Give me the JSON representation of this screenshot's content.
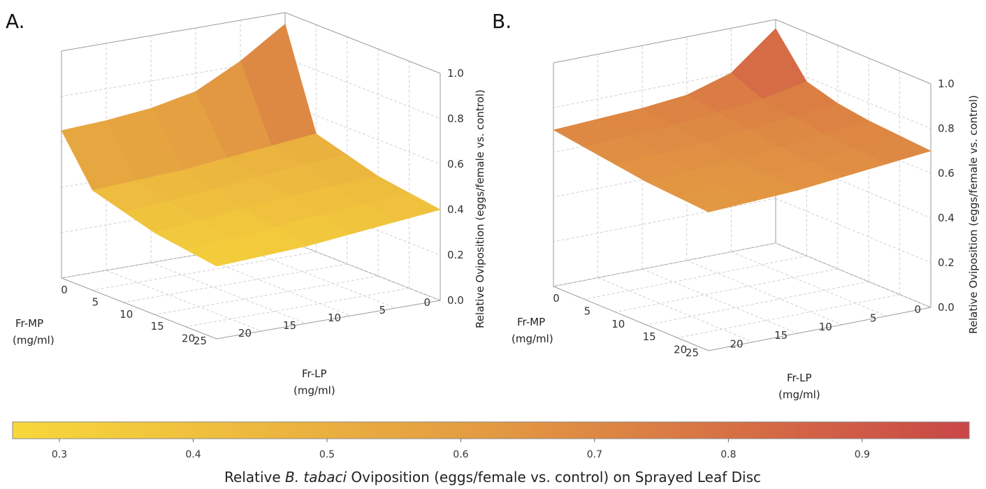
{
  "chart_data": [
    {
      "panel": "A.",
      "type": "surface3d",
      "zlabel": "Relative Oviposition (eggs/female vs. control)",
      "zlim": [
        0,
        1
      ],
      "zticks": [
        "0.0",
        "0.2",
        "0.4",
        "0.6",
        "0.8",
        "1.0"
      ],
      "axis_mp": {
        "label_line1": "Fr-MP",
        "label_line2": "(mg/ml)",
        "range": [
          0,
          25
        ],
        "ticks": [
          "0",
          "5",
          "10",
          "15",
          "20",
          "25"
        ]
      },
      "axis_lp": {
        "label_line1": "Fr-LP",
        "label_line2": "(mg/ml)",
        "range": [
          0,
          25
        ],
        "ticks": [
          "0",
          "5",
          "10",
          "15",
          "20"
        ]
      },
      "surface": {
        "mp": [
          0,
          5,
          10,
          15,
          20,
          25
        ],
        "lp": [
          0,
          5,
          10,
          15,
          20,
          25
        ],
        "z": [
          [
            0.95,
            0.52,
            0.48,
            0.44,
            0.42,
            0.4
          ],
          [
            0.82,
            0.5,
            0.47,
            0.43,
            0.4,
            0.38
          ],
          [
            0.72,
            0.48,
            0.45,
            0.42,
            0.39,
            0.36
          ],
          [
            0.68,
            0.46,
            0.43,
            0.4,
            0.37,
            0.34
          ],
          [
            0.66,
            0.45,
            0.41,
            0.38,
            0.35,
            0.33
          ],
          [
            0.65,
            0.44,
            0.4,
            0.36,
            0.34,
            0.32
          ]
        ]
      }
    },
    {
      "panel": "B.",
      "type": "surface3d",
      "zlabel": "Relative Oviposition (eggs/female vs. control)",
      "zlim": [
        0,
        1
      ],
      "zticks": [
        "0.0",
        "0.2",
        "0.4",
        "0.6",
        "0.8",
        "1.0"
      ],
      "axis_mp": {
        "label_line1": "Fr-MP",
        "label_line2": "(mg/ml)",
        "range": [
          0,
          25
        ],
        "ticks": [
          "0",
          "5",
          "10",
          "15",
          "20",
          "25"
        ]
      },
      "axis_lp": {
        "label_line1": "Fr-LP",
        "label_line2": "(mg/ml)",
        "range": [
          0,
          25
        ],
        "ticks": [
          "0",
          "5",
          "10",
          "15",
          "20"
        ]
      },
      "surface": {
        "mp": [
          0,
          5,
          10,
          15,
          20,
          25
        ],
        "lp": [
          0,
          5,
          10,
          15,
          20,
          25
        ],
        "z": [
          [
            0.96,
            0.78,
            0.74,
            0.72,
            0.71,
            0.7
          ],
          [
            0.8,
            0.74,
            0.72,
            0.7,
            0.69,
            0.68
          ],
          [
            0.74,
            0.72,
            0.7,
            0.68,
            0.67,
            0.66
          ],
          [
            0.72,
            0.7,
            0.68,
            0.66,
            0.65,
            0.64
          ],
          [
            0.71,
            0.69,
            0.67,
            0.65,
            0.64,
            0.63
          ],
          [
            0.7,
            0.68,
            0.66,
            0.64,
            0.63,
            0.62
          ]
        ]
      }
    }
  ],
  "colorbar": {
    "range": [
      0.265,
      0.98
    ],
    "ticks": [
      0.3,
      0.4,
      0.5,
      0.6,
      0.7,
      0.8,
      0.9
    ],
    "tick_labels": [
      "0.3",
      "0.4",
      "0.5",
      "0.6",
      "0.7",
      "0.8",
      "0.9"
    ],
    "color_low": "#f7d83a",
    "color_mid": "#e39a42",
    "color_high": "#c94747",
    "title_pre": "Relative ",
    "title_species": "B. tabaci",
    "title_post": " Oviposition (eggs/female vs. control) on Sprayed Leaf Disc"
  }
}
